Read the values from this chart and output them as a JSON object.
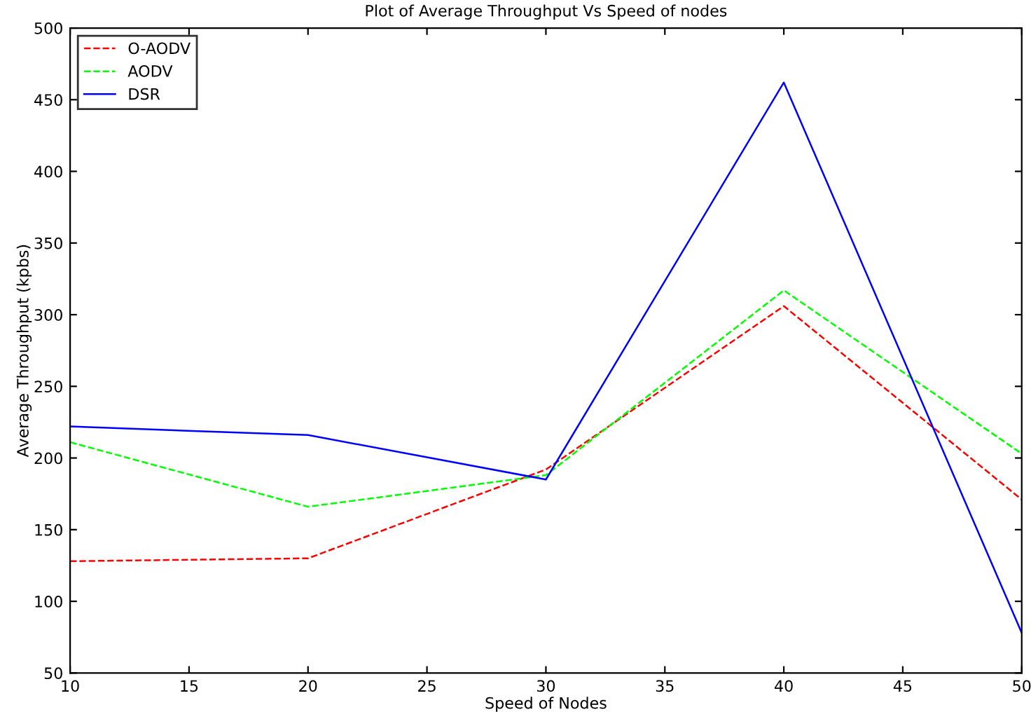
{
  "chart_data": {
    "type": "line",
    "title": "Plot of Average Throughput Vs Speed of nodes",
    "xlabel": "Speed of Nodes",
    "ylabel": "Average Throughput (kpbs)",
    "x": [
      10,
      20,
      30,
      40,
      50
    ],
    "series": [
      {
        "name": "O-AODV",
        "color": "#ff0000",
        "line_style": "dashed",
        "values": [
          128,
          130,
          192,
          306,
          171
        ]
      },
      {
        "name": "AODV",
        "color": "#00ff00",
        "line_style": "dashed",
        "values": [
          211,
          166,
          188,
          317,
          203
        ]
      },
      {
        "name": "DSR",
        "color": "#0000ff",
        "line_style": "solid",
        "values": [
          222,
          216,
          185,
          462,
          78
        ]
      }
    ],
    "xlim": [
      10,
      50
    ],
    "xticks": [
      10,
      15,
      20,
      25,
      30,
      35,
      40,
      45,
      50
    ],
    "ylim": [
      50,
      500
    ],
    "yticks": [
      50,
      100,
      150,
      200,
      250,
      300,
      350,
      400,
      450,
      500
    ],
    "grid": false,
    "legend": "top left",
    "marker": "none"
  }
}
